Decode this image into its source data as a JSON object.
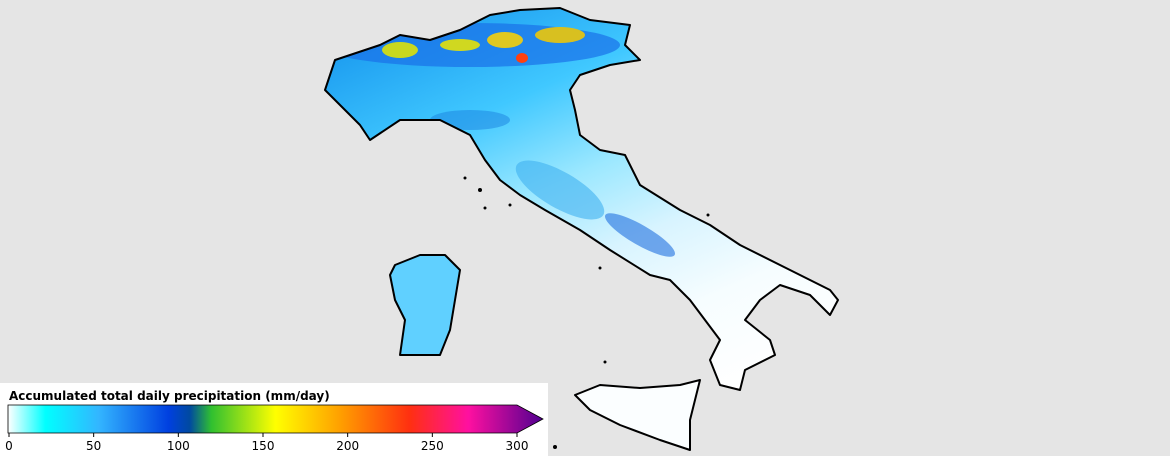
{
  "colorbar": {
    "title": "Accumulated total daily precipitation (mm/day)",
    "range": [
      0,
      300
    ],
    "ticks": [
      0,
      50,
      100,
      150,
      200,
      250,
      300
    ],
    "extend": "max"
  }
}
